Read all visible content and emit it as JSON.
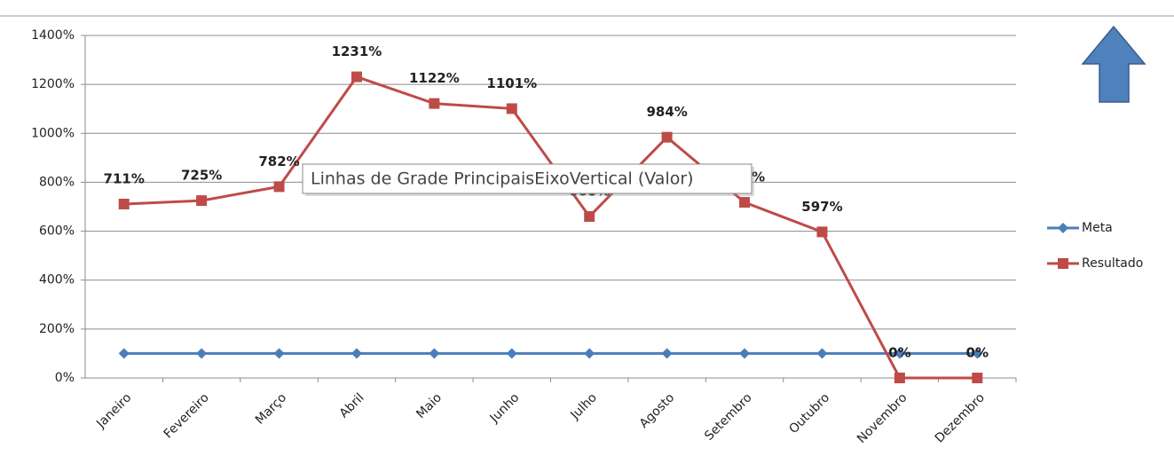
{
  "chart_data": {
    "type": "line",
    "categories": [
      "Janeiro",
      "Fevereiro",
      "Março",
      "Abril",
      "Maio",
      "Junho",
      "Julho",
      "Agosto",
      "Setembro",
      "Outubro",
      "Novembro",
      "Dezembro"
    ],
    "series": [
      {
        "name": "Meta",
        "color": "#4a7ebb",
        "marker": "diamond",
        "values": [
          100,
          100,
          100,
          100,
          100,
          100,
          100,
          100,
          100,
          100,
          100,
          100
        ]
      },
      {
        "name": "Resultado",
        "color": "#be4b48",
        "marker": "square",
        "values": [
          711,
          725,
          782,
          1231,
          1122,
          1101,
          660,
          984,
          718,
          597,
          0,
          0
        ],
        "value_labels": [
          "711%",
          "725%",
          "782%",
          "1231%",
          "1122%",
          "1101%",
          "660%",
          "984%",
          "718%",
          "597%",
          "0%",
          "0%"
        ]
      }
    ],
    "ylim": [
      0,
      1400
    ],
    "yticks": [
      {
        "value": 0,
        "label": "0%"
      },
      {
        "value": 200,
        "label": "200%"
      },
      {
        "value": 400,
        "label": "400%"
      },
      {
        "value": 600,
        "label": "600%"
      },
      {
        "value": 800,
        "label": "800%"
      },
      {
        "value": 1000,
        "label": "1000%"
      },
      {
        "value": 1200,
        "label": "1200%"
      },
      {
        "value": 1400,
        "label": "1400%"
      }
    ],
    "grid": true,
    "legend": "right",
    "tooltip": "Linhas de Grade PrincipaisEixoVertical (Valor)"
  }
}
